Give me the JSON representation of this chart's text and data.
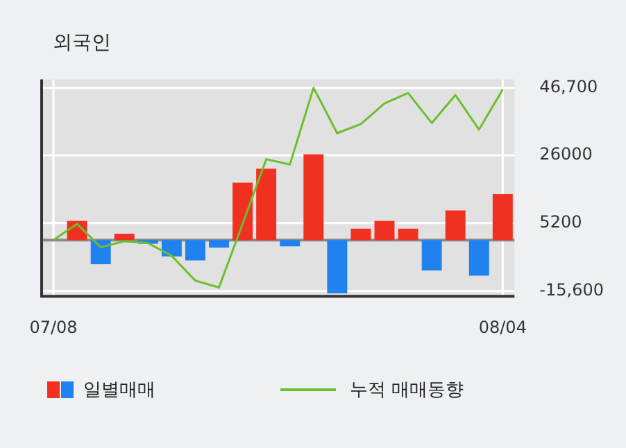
{
  "chart_data": {
    "type": "bar",
    "title": "외국인",
    "categories": [
      "07/08",
      null,
      null,
      null,
      null,
      null,
      null,
      null,
      null,
      null,
      null,
      null,
      null,
      null,
      null,
      null,
      null,
      null,
      null,
      "08/04"
    ],
    "series": [
      {
        "name": "일별매매",
        "colors": [
          "#f03020",
          "#f03020",
          "#1f82f0",
          "#f03020",
          "#1f82f0",
          "#1f82f0",
          "#1f82f0",
          "#1f82f0",
          "#f03020",
          "#f03020",
          "#1f82f0",
          "#f03020",
          "#1f82f0",
          "#f03020",
          "#f03020",
          "#f03020",
          "#1f82f0",
          "#f03020",
          "#1f82f0",
          "#f03020"
        ],
        "values": [
          null,
          5900,
          -7400,
          2000,
          -1100,
          -5000,
          -6200,
          -2300,
          17600,
          21900,
          -1900,
          26300,
          -16300,
          3500,
          5900,
          3500,
          -9300,
          9100,
          -10900,
          14100
        ]
      },
      {
        "name": "누적 매매동향",
        "type": "line",
        "color": "#6abf2b",
        "values": [
          0,
          5000,
          -2200,
          -300,
          -900,
          -4800,
          -12400,
          -14500,
          5000,
          24800,
          23200,
          46700,
          32800,
          35600,
          41900,
          45100,
          35900,
          44500,
          33900,
          46200
        ]
      }
    ],
    "ylim": [
      -17200,
      49300
    ],
    "yticks": [
      {
        "value": 46700,
        "label": "46,700"
      },
      26000,
      5200,
      {
        "value": -15600,
        "label": "-15,600"
      }
    ],
    "grid": true,
    "legend": "bottom",
    "marker": "none",
    "ref_lines": [
      {
        "axis": "y",
        "value": 0,
        "color": "#8a8a8a"
      }
    ]
  }
}
